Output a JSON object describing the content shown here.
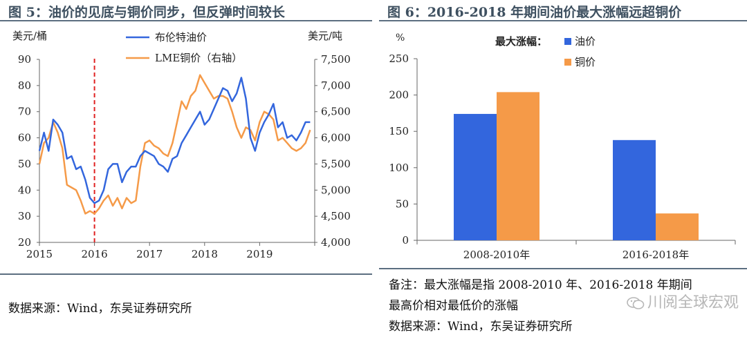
{
  "left": {
    "title": "图 5：油价的见底与铜价同步，但反弹时间较长",
    "source": "数据来源：Wind，东吴证券研究所"
  },
  "right": {
    "title": "图 6：2016-2018 年期间油价最大涨幅远超铜价",
    "note_line1": "备注：最大涨幅是指 2008-2010 年、2016-2018 年期间",
    "note_line2": "最高价相对最低价的涨幅",
    "source": "数据来源：Wind，东吴证券研究所"
  },
  "watermark": "川阅全球宏观",
  "colors": {
    "blue": "#3366dd",
    "orange": "#f59a48",
    "title": "#3e5060",
    "marker": "#e02020"
  },
  "chart_data": [
    {
      "type": "line",
      "ylabel_left": "美元/桶",
      "ylabel_right": "美元/吨",
      "ylim_left": [
        20,
        90
      ],
      "ylim_right": [
        4000,
        7500
      ],
      "yticks_left": [
        "20",
        "30",
        "40",
        "50",
        "60",
        "70",
        "80",
        "90"
      ],
      "yticks_right": [
        "4,000",
        "4,500",
        "5,000",
        "5,500",
        "6,000",
        "6,500",
        "7,000",
        "7,500"
      ],
      "xlim": [
        2015,
        2020
      ],
      "xticks": [
        "2015",
        "2016",
        "2017",
        "2018",
        "2019"
      ],
      "marker_line_x": 2016,
      "legend": [
        "布伦特油价",
        "LME铜价（右轴）"
      ],
      "series": [
        {
          "name": "布伦特油价",
          "axis": "left",
          "x": [
            2015.0,
            2015.083,
            2015.167,
            2015.25,
            2015.333,
            2015.417,
            2015.5,
            2015.583,
            2015.667,
            2015.75,
            2015.833,
            2015.917,
            2016.0,
            2016.083,
            2016.167,
            2016.25,
            2016.333,
            2016.417,
            2016.5,
            2016.583,
            2016.667,
            2016.75,
            2016.833,
            2016.917,
            2017.0,
            2017.083,
            2017.167,
            2017.25,
            2017.333,
            2017.417,
            2017.5,
            2017.583,
            2017.667,
            2017.75,
            2017.833,
            2017.917,
            2018.0,
            2018.083,
            2018.167,
            2018.25,
            2018.333,
            2018.417,
            2018.5,
            2018.583,
            2018.667,
            2018.75,
            2018.833,
            2018.917,
            2019.0,
            2019.083,
            2019.167,
            2019.25,
            2019.333,
            2019.417,
            2019.5,
            2019.583,
            2019.667,
            2019.75,
            2019.833,
            2019.917
          ],
          "values": [
            55,
            62,
            55,
            67,
            65,
            62,
            52,
            53,
            48,
            49,
            44,
            37,
            35,
            36,
            40,
            48,
            50,
            50,
            43,
            47,
            49,
            49,
            53,
            55,
            54,
            53,
            50,
            49,
            47,
            52,
            53,
            58,
            61,
            64,
            67,
            70,
            65,
            67,
            71,
            75,
            79,
            78,
            74,
            77,
            83,
            75,
            60,
            55,
            62,
            66,
            69,
            73,
            64,
            66,
            60,
            61,
            59,
            62,
            66,
            66
          ]
        },
        {
          "name": "LME铜价（右轴）",
          "axis": "right",
          "x": [
            2015.0,
            2015.083,
            2015.167,
            2015.25,
            2015.333,
            2015.417,
            2015.5,
            2015.583,
            2015.667,
            2015.75,
            2015.833,
            2015.917,
            2016.0,
            2016.083,
            2016.167,
            2016.25,
            2016.333,
            2016.417,
            2016.5,
            2016.583,
            2016.667,
            2016.75,
            2016.833,
            2016.917,
            2017.0,
            2017.083,
            2017.167,
            2017.25,
            2017.333,
            2017.417,
            2017.5,
            2017.583,
            2017.667,
            2017.75,
            2017.833,
            2017.917,
            2018.0,
            2018.083,
            2018.167,
            2018.25,
            2018.333,
            2018.417,
            2018.5,
            2018.583,
            2018.667,
            2018.75,
            2018.833,
            2018.917,
            2019.0,
            2019.083,
            2019.167,
            2019.25,
            2019.333,
            2019.417,
            2019.5,
            2019.583,
            2019.667,
            2019.75,
            2019.833,
            2019.917
          ],
          "values": [
            5500,
            5900,
            6000,
            6300,
            6100,
            5800,
            5100,
            5050,
            5000,
            4800,
            4550,
            4600,
            4550,
            4650,
            4800,
            4900,
            4700,
            4850,
            4650,
            4850,
            4750,
            4800,
            5450,
            5900,
            5950,
            5850,
            5800,
            5700,
            5650,
            5900,
            6300,
            6700,
            6550,
            6800,
            6900,
            7200,
            7050,
            6900,
            6750,
            6800,
            6800,
            6750,
            6500,
            6200,
            6000,
            6200,
            6150,
            5950,
            6300,
            6500,
            6450,
            6350,
            5950,
            6000,
            5900,
            5800,
            5750,
            5800,
            5900,
            6150
          ]
        }
      ]
    },
    {
      "type": "bar",
      "ylabel": "%",
      "ylim": [
        0,
        250
      ],
      "yticks": [
        "0",
        "50",
        "100",
        "150",
        "200",
        "250"
      ],
      "legend_title": "最大涨幅：",
      "categories": [
        "2008-2010年",
        "2016-2018年"
      ],
      "series": [
        {
          "name": "油价",
          "values": [
            174,
            138
          ]
        },
        {
          "name": "铜价",
          "values": [
            204,
            37
          ]
        }
      ]
    }
  ]
}
